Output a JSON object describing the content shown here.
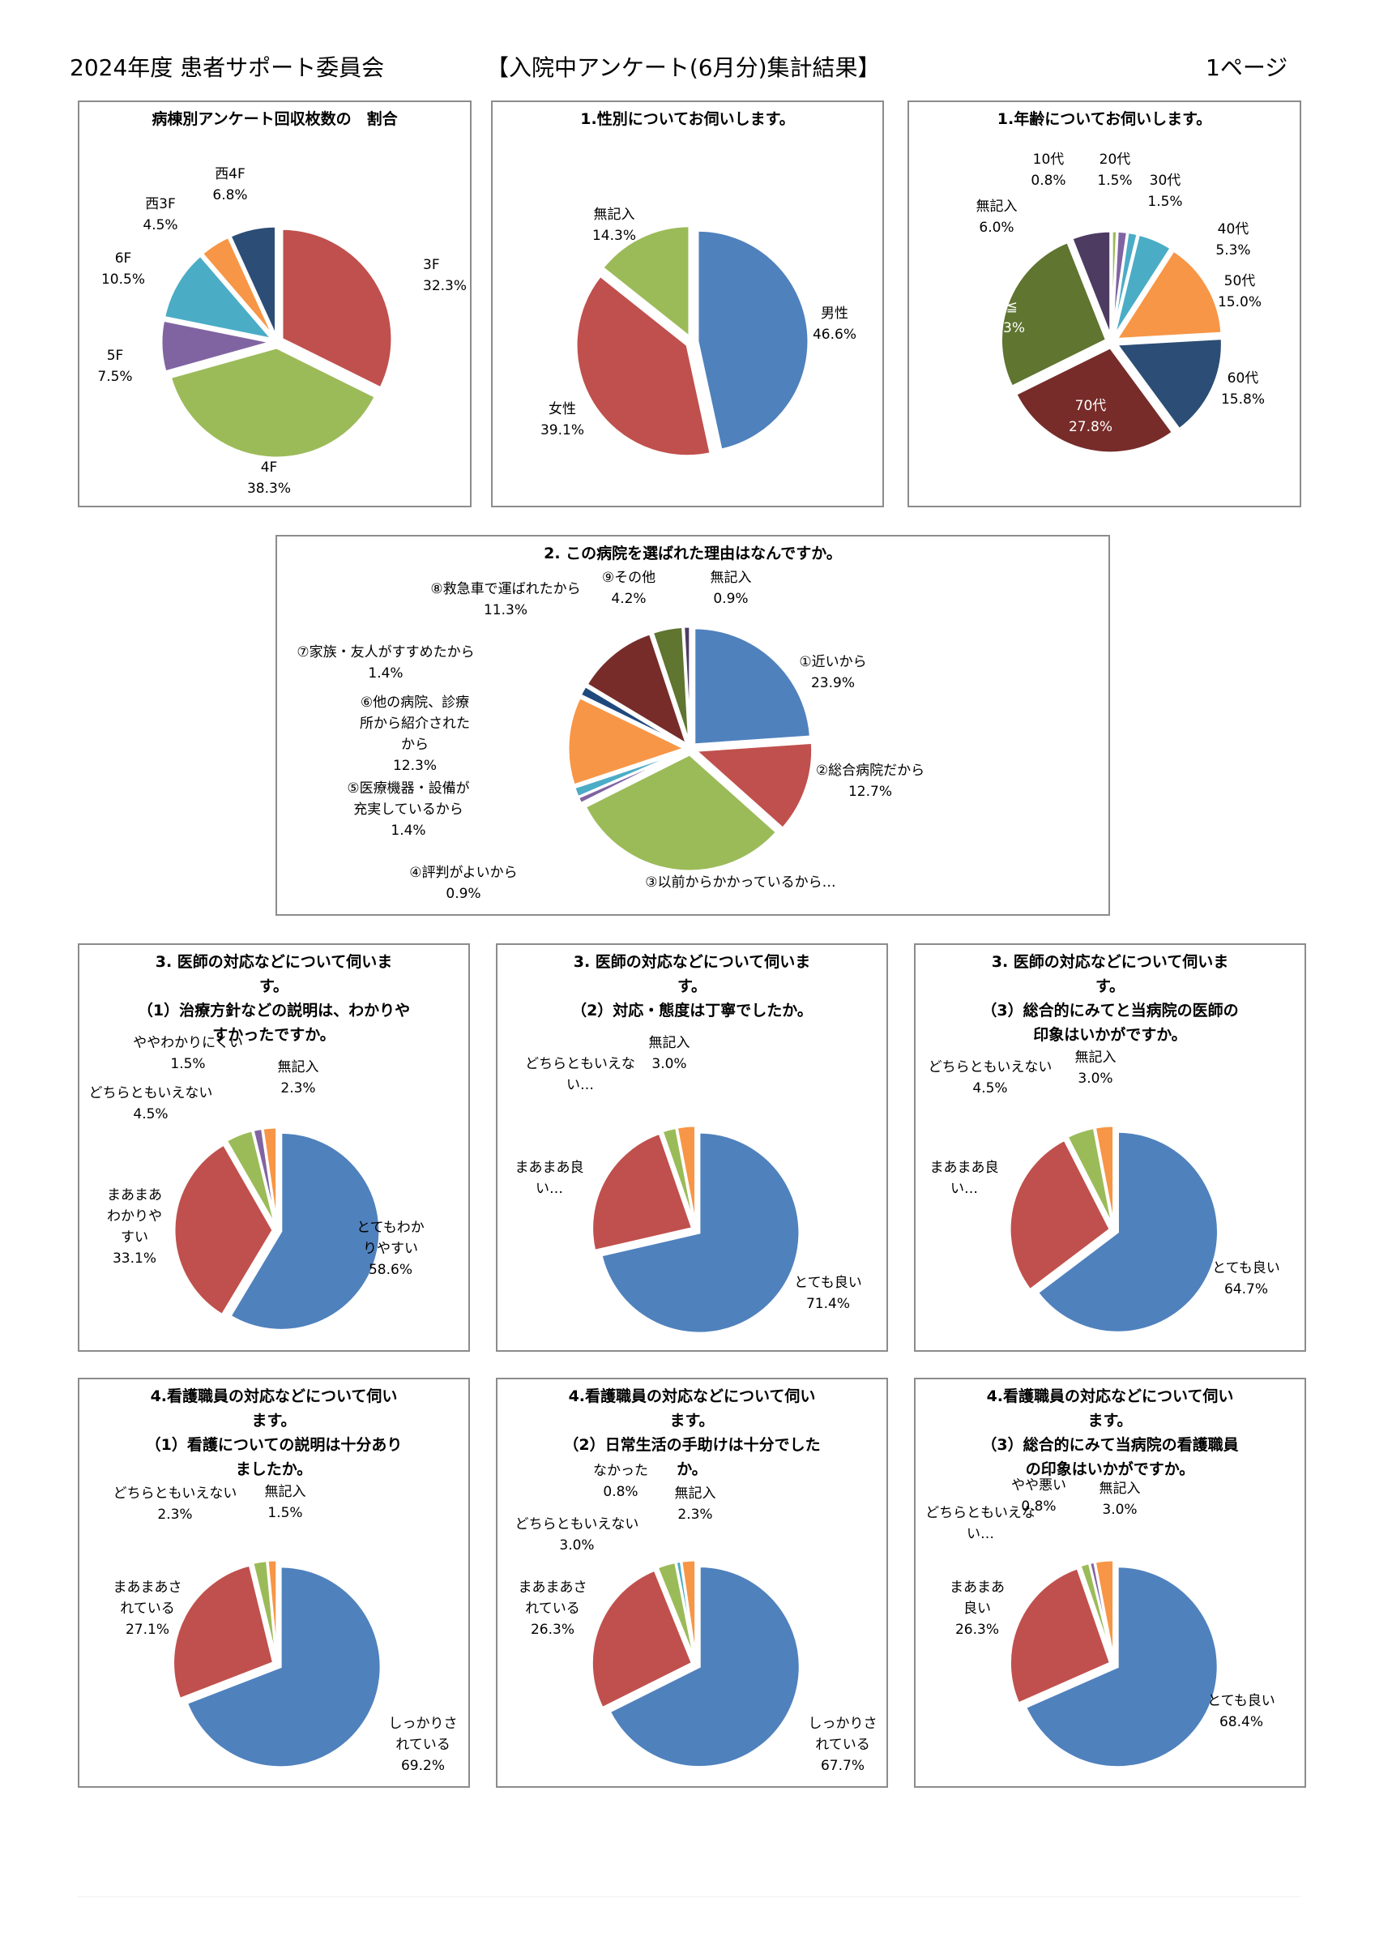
{
  "header": {
    "left": "2024年度 患者サポート委員会",
    "center": "【入院中アンケート(6月分)集計結果】",
    "right": "1ページ"
  },
  "colors": {
    "blue": "#4f81bd",
    "red": "#c0504d",
    "green": "#9bbb59",
    "purple": "#8064a2",
    "aqua": "#4bacc6",
    "orange": "#f79646",
    "navy": "#2c4d75",
    "darkred": "#772c2a",
    "olive": "#5f7530",
    "darkpurple": "#4d3b62",
    "darkblue": "#1f497d"
  },
  "chart_data": [
    {
      "type": "pie",
      "title": "病棟別アンケート回収枚数の　割合",
      "slices": [
        {
          "label": "3F",
          "value": 32.3,
          "display": "32.3%",
          "color": "#c0504d"
        },
        {
          "label": "4F",
          "value": 38.3,
          "display": "38.3%",
          "color": "#9bbb59"
        },
        {
          "label": "5F",
          "value": 7.5,
          "display": "7.5%",
          "color": "#8064a2"
        },
        {
          "label": "6F",
          "value": 10.5,
          "display": "10.5%",
          "color": "#4bacc6"
        },
        {
          "label": "西3F",
          "value": 4.5,
          "display": "4.5%",
          "color": "#f79646"
        },
        {
          "label": "西4F",
          "value": 6.8,
          "display": "6.8%",
          "color": "#2c4d75"
        }
      ]
    },
    {
      "type": "pie",
      "title": "1.性別についてお伺いします。",
      "slices": [
        {
          "label": "男性",
          "value": 46.6,
          "display": "46.6%",
          "color": "#4f81bd"
        },
        {
          "label": "女性",
          "value": 39.1,
          "display": "39.1%",
          "color": "#c0504d"
        },
        {
          "label": "無記入",
          "value": 14.3,
          "display": "14.3%",
          "color": "#9bbb59"
        }
      ]
    },
    {
      "type": "pie",
      "title": "1.年齢についてお伺いします。",
      "slices": [
        {
          "label": "10代",
          "value": 0.8,
          "display": "0.8%",
          "color": "#9bbb59"
        },
        {
          "label": "20代",
          "value": 1.5,
          "display": "1.5%",
          "color": "#8064a2"
        },
        {
          "label": "30代",
          "value": 1.5,
          "display": "1.5%",
          "color": "#4bacc6"
        },
        {
          "label": "40代",
          "value": 5.3,
          "display": "5.3%",
          "color": "#4bacc6"
        },
        {
          "label": "50代",
          "value": 15.0,
          "display": "15.0%",
          "color": "#f79646"
        },
        {
          "label": "60代",
          "value": 15.8,
          "display": "15.8%",
          "color": "#2c4d75"
        },
        {
          "label": "70代",
          "value": 27.8,
          "display": "27.8%",
          "color": "#772c2a"
        },
        {
          "label": "80≦",
          "value": 26.3,
          "display": "26.3%",
          "color": "#5f7530"
        },
        {
          "label": "無記入",
          "value": 6.0,
          "display": "6.0%",
          "color": "#4d3b62"
        }
      ]
    },
    {
      "type": "pie",
      "title": "2. この病院を選ばれた理由はなんですか。",
      "slices": [
        {
          "label": "①近いから",
          "value": 23.9,
          "display": "23.9%",
          "color": "#4f81bd"
        },
        {
          "label": "②総合病院だから",
          "value": 12.7,
          "display": "12.7%",
          "color": "#c0504d"
        },
        {
          "label": "③以前からかかっているから…",
          "value": 31.0,
          "display": "",
          "color": "#9bbb59"
        },
        {
          "label": "④評判がよいから",
          "value": 0.9,
          "display": "0.9%",
          "color": "#8064a2"
        },
        {
          "label": "⑤医療機器・設備が充実しているから",
          "value": 1.4,
          "display": "1.4%",
          "color": "#4bacc6"
        },
        {
          "label": "⑥他の病院、診療所から紹介されたから",
          "value": 12.3,
          "display": "12.3%",
          "color": "#f79646"
        },
        {
          "label": "⑦家族・友人がすすめたから",
          "value": 1.4,
          "display": "1.4%",
          "color": "#1f497d"
        },
        {
          "label": "⑧救急車で運ばれたから",
          "value": 11.3,
          "display": "11.3%",
          "color": "#772c2a"
        },
        {
          "label": "⑨その他",
          "value": 4.2,
          "display": "4.2%",
          "color": "#5f7530"
        },
        {
          "label": "無記入",
          "value": 0.9,
          "display": "0.9%",
          "color": "#4d3b62"
        }
      ]
    },
    {
      "type": "pie",
      "title": "3. 医師の対応などについて伺いま\nす。\n（1）治療方針などの説明は、わかりや\nすかったですか。",
      "slices": [
        {
          "label": "とてもわかりやすい",
          "value": 58.6,
          "display": "58.6%",
          "color": "#4f81bd"
        },
        {
          "label": "まあまあわかりやすい",
          "value": 33.1,
          "display": "33.1%",
          "color": "#c0504d"
        },
        {
          "label": "どちらともいえない",
          "value": 4.5,
          "display": "4.5%",
          "color": "#9bbb59"
        },
        {
          "label": "ややわかりにくい",
          "value": 1.5,
          "display": "1.5%",
          "color": "#8064a2"
        },
        {
          "label": "無記入",
          "value": 2.3,
          "display": "2.3%",
          "color": "#f79646"
        }
      ]
    },
    {
      "type": "pie",
      "title": "3. 医師の対応などについて伺いま\nす。\n（2）対応・態度は丁寧でしたか。",
      "slices": [
        {
          "label": "とても良い",
          "value": 71.4,
          "display": "71.4%",
          "color": "#4f81bd"
        },
        {
          "label": "まあまあ良い…",
          "value": 23.3,
          "display": "",
          "color": "#c0504d"
        },
        {
          "label": "どちらともいえない…",
          "value": 2.3,
          "display": "",
          "color": "#9bbb59"
        },
        {
          "label": "無記入",
          "value": 3.0,
          "display": "3.0%",
          "color": "#f79646"
        }
      ]
    },
    {
      "type": "pie",
      "title": "3. 医師の対応などについて伺いま\nす。\n（3）総合的にみてと当病院の医師の\n印象はいかがですか。",
      "slices": [
        {
          "label": "とても良い",
          "value": 64.7,
          "display": "64.7%",
          "color": "#4f81bd"
        },
        {
          "label": "まあまあ良い…",
          "value": 27.8,
          "display": "",
          "color": "#c0504d"
        },
        {
          "label": "どちらともいえない",
          "value": 4.5,
          "display": "4.5%",
          "color": "#9bbb59"
        },
        {
          "label": "無記入",
          "value": 3.0,
          "display": "3.0%",
          "color": "#f79646"
        }
      ]
    },
    {
      "type": "pie",
      "title": "4.看護職員の対応などについて伺い\nます。\n（1）看護についての説明は十分あり\nましたか。",
      "slices": [
        {
          "label": "しっかりされている",
          "value": 69.2,
          "display": "69.2%",
          "color": "#4f81bd"
        },
        {
          "label": "まあまあされている",
          "value": 27.1,
          "display": "27.1%",
          "color": "#c0504d"
        },
        {
          "label": "どちらともいえない",
          "value": 2.3,
          "display": "2.3%",
          "color": "#9bbb59"
        },
        {
          "label": "無記入",
          "value": 1.5,
          "display": "1.5%",
          "color": "#f79646"
        }
      ]
    },
    {
      "type": "pie",
      "title": "4.看護職員の対応などについて伺い\nます。\n（2）日常生活の手助けは十分でした\nか。",
      "slices": [
        {
          "label": "しっかりされている",
          "value": 67.7,
          "display": "67.7%",
          "color": "#4f81bd"
        },
        {
          "label": "まあまあされている",
          "value": 26.3,
          "display": "26.3%",
          "color": "#c0504d"
        },
        {
          "label": "どちらともいえない",
          "value": 3.0,
          "display": "3.0%",
          "color": "#9bbb59"
        },
        {
          "label": "なかった",
          "value": 0.8,
          "display": "0.8%",
          "color": "#4bacc6"
        },
        {
          "label": "無記入",
          "value": 2.3,
          "display": "2.3%",
          "color": "#f79646"
        }
      ]
    },
    {
      "type": "pie",
      "title": "4.看護職員の対応などについて伺い\nます。\n（3）総合的にみて当病院の看護職員\nの印象はいかがですか。",
      "slices": [
        {
          "label": "とても良い",
          "value": 68.4,
          "display": "68.4%",
          "color": "#4f81bd"
        },
        {
          "label": "まあまあ良い",
          "value": 26.3,
          "display": "26.3%",
          "color": "#c0504d"
        },
        {
          "label": "どちらともいえない…",
          "value": 1.5,
          "display": "",
          "color": "#9bbb59"
        },
        {
          "label": "やや悪い",
          "value": 0.8,
          "display": "0.8%",
          "color": "#8064a2"
        },
        {
          "label": "無記入",
          "value": 3.0,
          "display": "3.0%",
          "color": "#f79646"
        }
      ]
    }
  ]
}
